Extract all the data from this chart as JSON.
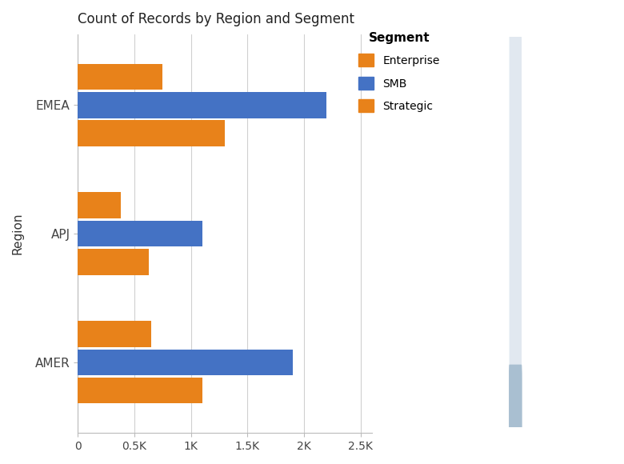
{
  "title": "Count of Records by Region and Segment",
  "regions": [
    "EMEA",
    "APJ",
    "AMER"
  ],
  "segments": [
    "Enterprise",
    "SMB",
    "Strategic"
  ],
  "values": {
    "EMEA": {
      "Enterprise": 750,
      "SMB": 2200,
      "Strategic": 1300
    },
    "APJ": {
      "Enterprise": 380,
      "SMB": 1100,
      "Strategic": 630
    },
    "AMER": {
      "Enterprise": 650,
      "SMB": 1900,
      "Strategic": 1100
    }
  },
  "colors": {
    "Enterprise": "#E8821A",
    "SMB": "#4472C4",
    "Strategic": "#E8821A"
  },
  "xlabel_ticks": [
    0,
    500,
    1000,
    1500,
    2000,
    2500
  ],
  "xlabel_labels": [
    "0",
    "0.5K",
    "1K",
    "1.5K",
    "2K",
    "2.5K"
  ],
  "ylabel": "Region",
  "background_color": "#ffffff",
  "plot_bg_color": "#ffffff",
  "legend_title": "Segment",
  "bar_height": 0.22,
  "xlim": [
    0,
    2600
  ]
}
